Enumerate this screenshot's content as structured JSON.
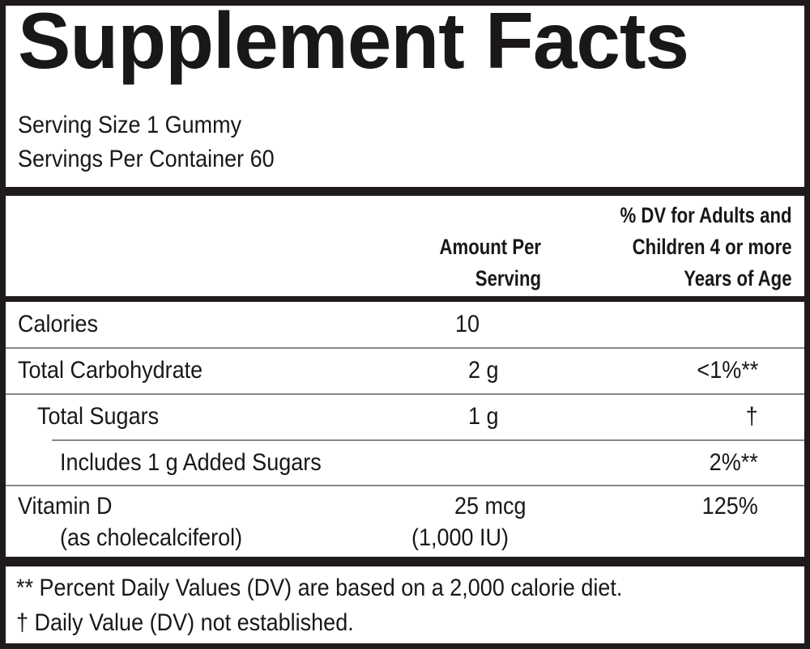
{
  "title": "Supplement Facts",
  "serving_size": "Serving Size 1 Gummy",
  "servings_per_container": "Servings Per Container 60",
  "header": {
    "amount_line1": "Amount Per",
    "amount_line2": "Serving",
    "dv_line1": "% DV for Adults and",
    "dv_line2": "Children 4 or more",
    "dv_line3": "Years of Age"
  },
  "rows": [
    {
      "name": "Calories",
      "amount": "10",
      "dv": ""
    },
    {
      "name": "Total Carbohydrate",
      "amount": "2 g",
      "dv": "<1%**"
    },
    {
      "name": "Total Sugars",
      "amount": "1 g",
      "dv": "†"
    },
    {
      "name": "Includes 1 g Added Sugars",
      "amount": "",
      "dv": "2%**"
    },
    {
      "name": "Vitamin D",
      "sub": "(as cholecalciferol)",
      "amount": "25 mcg",
      "amount_sub": "(1,000 IU)",
      "dv": "125%"
    }
  ],
  "footnotes": [
    "** Percent Daily Values (DV) are based on a 2,000 calorie diet.",
    "† Daily Value (DV) not established."
  ]
}
